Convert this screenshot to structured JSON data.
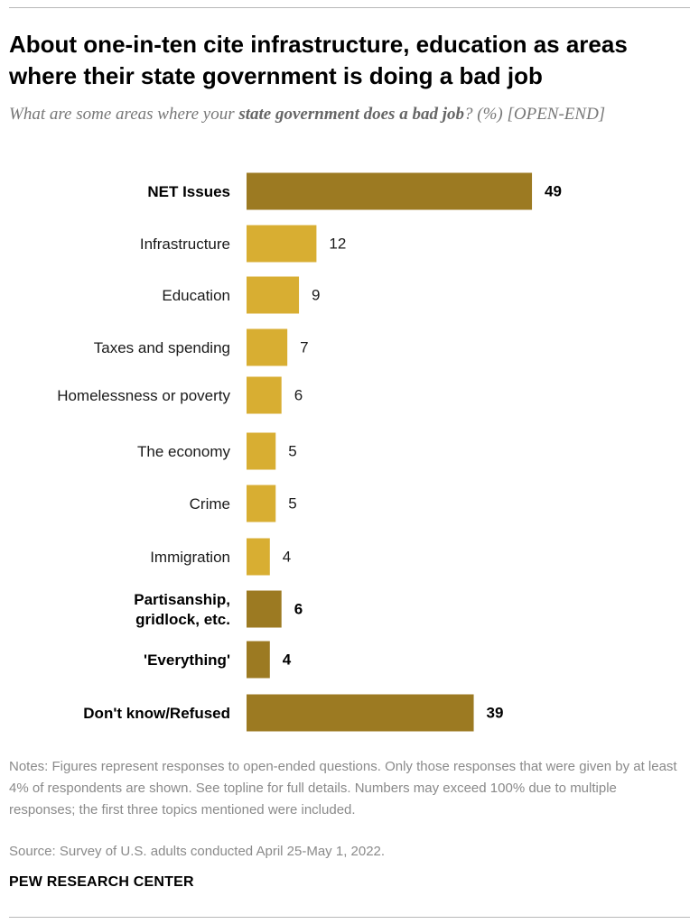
{
  "header": {
    "title": "About one-in-ten cite infrastructure, education as areas where their state government is doing a bad job",
    "subtitle_pre": "What are some areas where your ",
    "subtitle_bold": "state government does a bad job",
    "subtitle_post": "? (%) [OPEN-END]"
  },
  "footer": {
    "notes": "Notes: Figures represent responses to open-ended questions. Only those responses that were given by at least 4% of respondents are shown. See topline for full details. Numbers may exceed 100% due to multiple responses; the first three topics mentioned were included.",
    "source": "Source: Survey of U.S. adults conducted April 25-May 1, 2022.",
    "brand": "PEW RESEARCH CENTER"
  },
  "colors": {
    "net": "#9c7a22",
    "sub": "#d8ae32"
  },
  "chart_data": {
    "type": "bar",
    "orientation": "horizontal",
    "categories": [
      "NET Issues",
      "Infrastructure",
      "Education",
      "Taxes and spending",
      "Homelessness or poverty",
      "The economy",
      "Crime",
      "Immigration",
      "Partisanship, gridlock, etc.",
      "'Everything'",
      "Don't know/Refused"
    ],
    "values": [
      49,
      12,
      9,
      7,
      6,
      5,
      5,
      4,
      6,
      4,
      39
    ],
    "category_lines": [
      [
        "NET Issues"
      ],
      [
        "Infrastructure"
      ],
      [
        "Education"
      ],
      [
        "Taxes and spending"
      ],
      [
        "Homelessness or poverty"
      ],
      [
        "The economy"
      ],
      [
        "Crime"
      ],
      [
        "Immigration"
      ],
      [
        "Partisanship,",
        "gridlock, etc."
      ],
      [
        "'Everything'"
      ],
      [
        "Don't know/Refused"
      ]
    ],
    "emphasis": [
      true,
      false,
      false,
      false,
      false,
      false,
      false,
      false,
      true,
      true,
      true
    ],
    "xlim": [
      0,
      50
    ],
    "grid": false,
    "legend": "none"
  }
}
